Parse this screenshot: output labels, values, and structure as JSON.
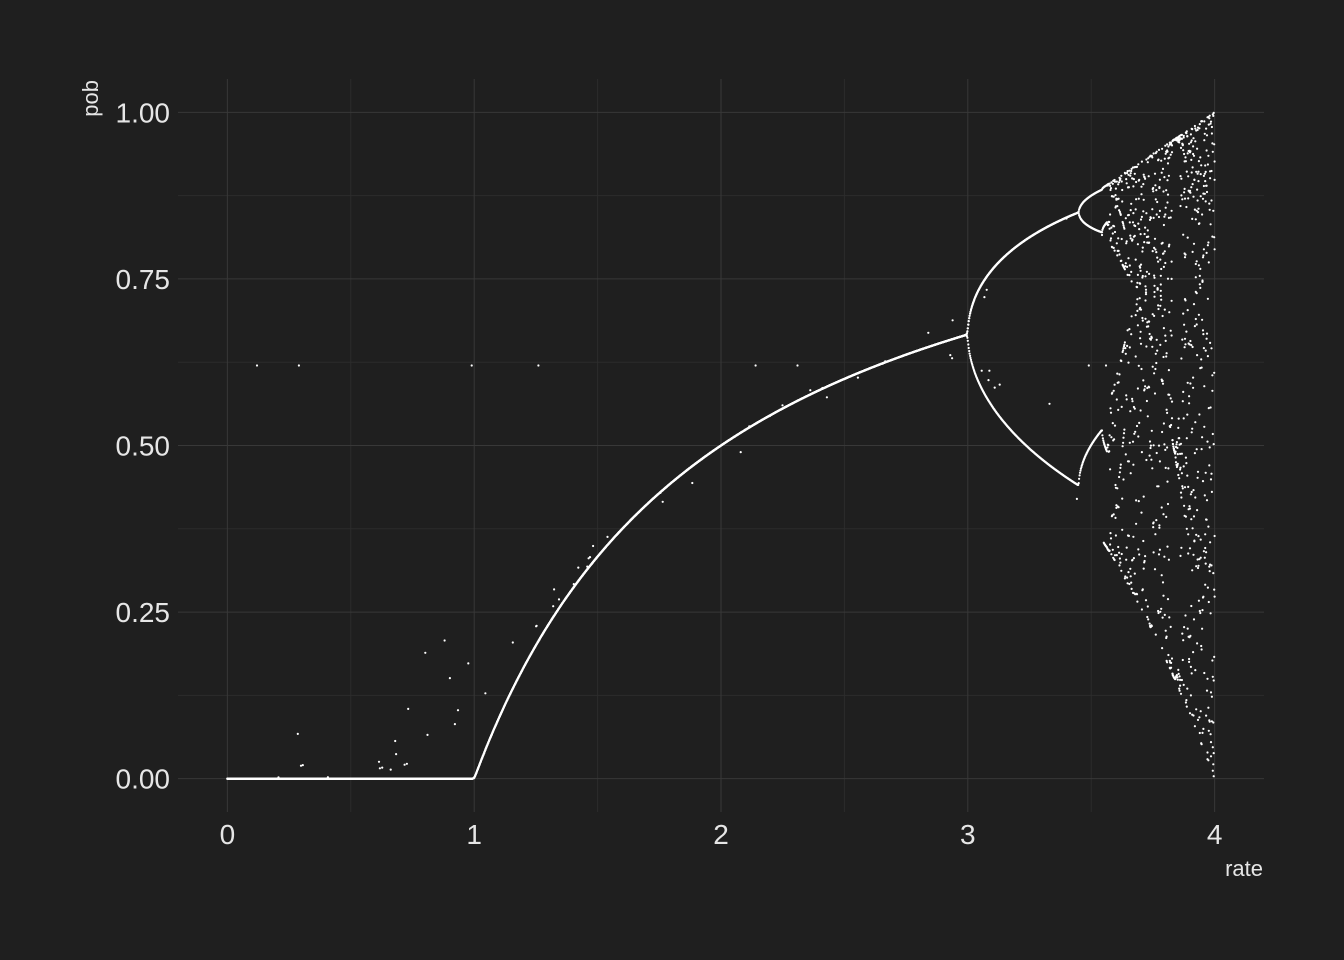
{
  "colors": {
    "background": "#1f1f1f",
    "grid_major": "#383838",
    "grid_minor": "#2c2c2c",
    "text": "#e6e6e6",
    "point": "#ffffff"
  },
  "chart_data": {
    "type": "scatter",
    "title": "",
    "xlabel": "rate",
    "ylabel": "pob",
    "xlim": [
      -0.2,
      4.2
    ],
    "ylim": [
      -0.05,
      1.05
    ],
    "x_ticks": [
      0,
      1,
      2,
      3,
      4
    ],
    "x_tick_labels": [
      "0",
      "1",
      "2",
      "3",
      "4"
    ],
    "y_ticks": [
      0,
      0.25,
      0.5,
      0.75,
      1
    ],
    "y_tick_labels": [
      "0.00",
      "0.25",
      "0.50",
      "0.75",
      "1.00"
    ],
    "grid": true,
    "legend": "none",
    "description": "Logistic map bifurcation: population p after many iterations of p -> r*p*(1-p) versus rate r in [0,4]",
    "series": [
      {
        "rule": "steady state: 0 for r<=1, 1-1/r for 1<r<3; period-doubling cascade from r=3 (0.667) splitting to 0.85/0.44 at r~3.45; chaotic band approaching 0..1 at r=4",
        "sample_points": [
          {
            "x": 0,
            "y": 0
          },
          {
            "x": 1,
            "y": 0
          },
          {
            "x": 1.5,
            "y": 0.333
          },
          {
            "x": 2,
            "y": 0.5
          },
          {
            "x": 2.5,
            "y": 0.6
          },
          {
            "x": 3,
            "y": 0.667
          },
          {
            "x": 3.45,
            "y": 0.852
          },
          {
            "x": 3.45,
            "y": 0.44
          },
          {
            "x": 4,
            "y": 1
          },
          {
            "x": 4,
            "y": 0.01
          }
        ]
      }
    ]
  }
}
